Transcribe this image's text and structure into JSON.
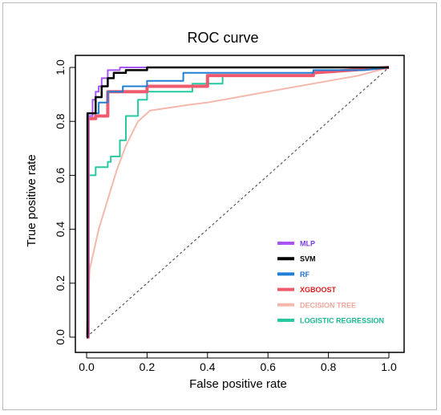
{
  "chart_data": {
    "type": "line",
    "title": "ROC curve",
    "xlabel": "False positive rate",
    "ylabel": "True positive rate",
    "xlim": [
      0,
      1
    ],
    "ylim": [
      0,
      1
    ],
    "x_ticks": [
      "0.0",
      "0.2",
      "0.4",
      "0.6",
      "0.8",
      "1.0"
    ],
    "y_ticks": [
      "0.0",
      "0.2",
      "0.4",
      "0.6",
      "0.8",
      "1.0"
    ],
    "grid": false,
    "legend_position": "bottom-right",
    "diagonal_reference": {
      "x": [
        0,
        1
      ],
      "y": [
        0,
        1
      ],
      "style": "dashed",
      "color": "#555555"
    },
    "series": [
      {
        "name": "MLP",
        "color": "#a855f7",
        "width": 2,
        "x": [
          0,
          0.005,
          0.005,
          0.02,
          0.02,
          0.03,
          0.03,
          0.04,
          0.04,
          0.05,
          0.05,
          0.07,
          0.07,
          0.11,
          0.11,
          0.27,
          0.27,
          1
        ],
        "y": [
          0,
          0,
          0.82,
          0.82,
          0.88,
          0.88,
          0.91,
          0.91,
          0.93,
          0.93,
          0.96,
          0.96,
          0.99,
          0.99,
          1.0,
          1.0,
          1.0,
          1.0
        ]
      },
      {
        "name": "SVM",
        "color": "#000000",
        "width": 2.5,
        "x": [
          0,
          0.003,
          0.003,
          0.03,
          0.03,
          0.05,
          0.05,
          0.07,
          0.07,
          0.09,
          0.09,
          0.13,
          0.13,
          0.2,
          0.2,
          1
        ],
        "y": [
          0,
          0,
          0.83,
          0.83,
          0.89,
          0.89,
          0.93,
          0.93,
          0.96,
          0.96,
          0.98,
          0.98,
          0.99,
          0.99,
          1.0,
          1.0
        ]
      },
      {
        "name": "RF",
        "color": "#1f7fd6",
        "width": 2,
        "x": [
          0,
          0.005,
          0.005,
          0.04,
          0.04,
          0.07,
          0.07,
          0.12,
          0.12,
          0.2,
          0.2,
          0.32,
          0.32,
          0.75,
          0.75,
          0.92,
          1
        ],
        "y": [
          0,
          0,
          0.83,
          0.83,
          0.87,
          0.87,
          0.91,
          0.91,
          0.93,
          0.93,
          0.95,
          0.95,
          0.98,
          0.98,
          0.99,
          0.99,
          1.0
        ]
      },
      {
        "name": "XGBOOST",
        "color": "#ef5a6f",
        "width": 4,
        "x": [
          0,
          0.005,
          0.005,
          0.03,
          0.03,
          0.07,
          0.07,
          0.2,
          0.2,
          0.4,
          0.4,
          0.75,
          0.75,
          1
        ],
        "y": [
          0,
          0,
          0.81,
          0.81,
          0.82,
          0.82,
          0.91,
          0.91,
          0.93,
          0.93,
          0.97,
          0.97,
          0.98,
          1.0
        ]
      },
      {
        "name": "DECISION TREE",
        "color": "#f4b8ac",
        "width": 2,
        "x": [
          0,
          0.01,
          0.04,
          0.07,
          0.1,
          0.13,
          0.17,
          0.21,
          0.27,
          0.33,
          0.4,
          0.5,
          0.6,
          0.7,
          0.8,
          0.9,
          1
        ],
        "y": [
          0,
          0.25,
          0.4,
          0.51,
          0.62,
          0.71,
          0.8,
          0.84,
          0.85,
          0.86,
          0.87,
          0.89,
          0.91,
          0.93,
          0.95,
          0.97,
          1.0
        ]
      },
      {
        "name": "LOGISTIC REGRESSION",
        "color": "#26c9a2",
        "width": 2,
        "x": [
          0,
          0.003,
          0.003,
          0.03,
          0.03,
          0.07,
          0.07,
          0.08,
          0.08,
          0.11,
          0.11,
          0.13,
          0.13,
          0.17,
          0.17,
          0.2,
          0.2,
          0.35,
          0.35,
          0.45,
          0.45,
          0.75,
          0.75,
          1
        ],
        "y": [
          0,
          0,
          0.6,
          0.6,
          0.63,
          0.63,
          0.65,
          0.65,
          0.67,
          0.67,
          0.73,
          0.73,
          0.82,
          0.82,
          0.88,
          0.88,
          0.91,
          0.91,
          0.94,
          0.94,
          0.97,
          0.97,
          0.98,
          1.0
        ]
      }
    ]
  }
}
